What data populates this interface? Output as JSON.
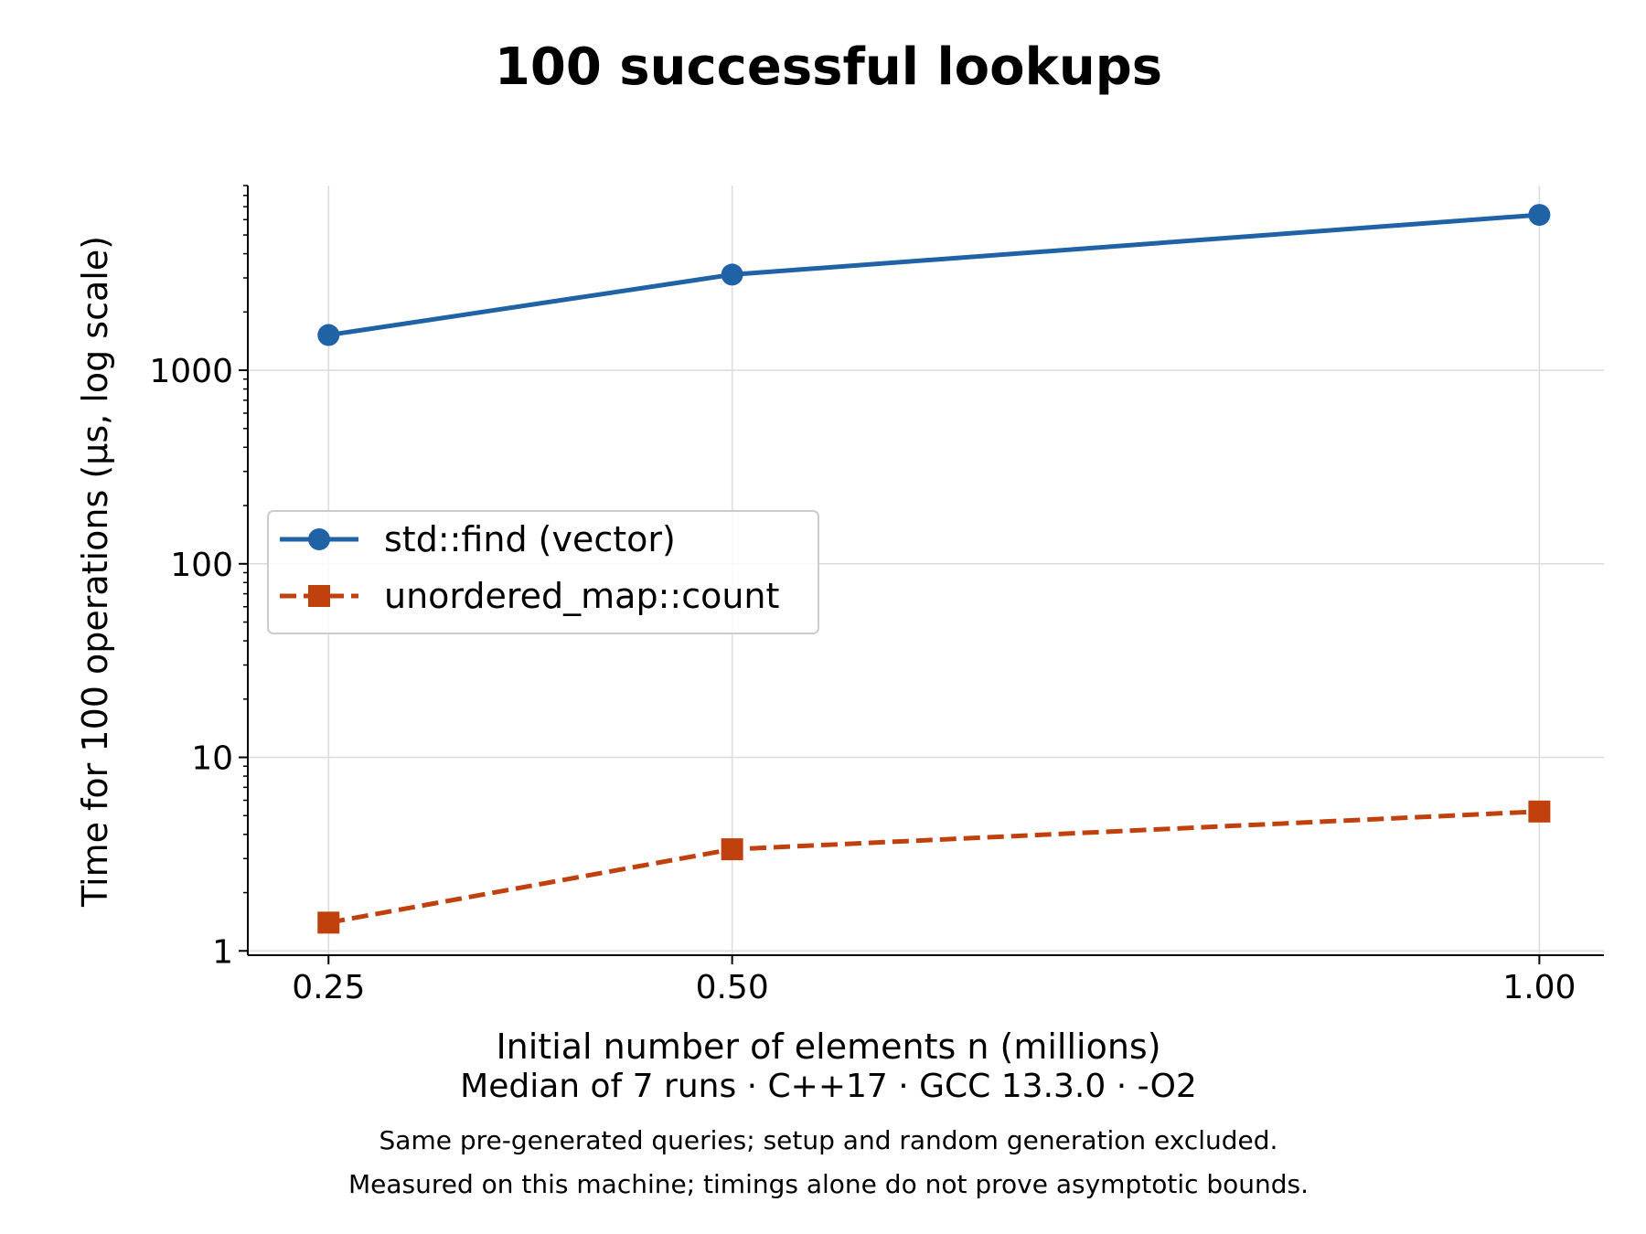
{
  "chart_data": {
    "type": "line",
    "title": "100 successful lookups",
    "xlabel": "Initial number of elements n (millions)",
    "ylabel": "Time for 100 operations (µs, log scale)",
    "subtitle": "Median of 7 runs · C++17 · GCC 13.3.0 · -O2",
    "footnotes": [
      "Same pre-generated queries; setup and random generation excluded.",
      "Measured on this machine; timings alone do not prove asymptotic bounds."
    ],
    "x": [
      0.25,
      0.5,
      1.0
    ],
    "x_tick_labels": [
      "0.25",
      "0.50",
      "1.00"
    ],
    "xlim": [
      0.2,
      1.04
    ],
    "y_scale": "log",
    "ylim": [
      0.95,
      9000
    ],
    "y_ticks": [
      1,
      10,
      100,
      1000
    ],
    "y_tick_labels": [
      "1",
      "10",
      "100",
      "1000"
    ],
    "grid": true,
    "legend_position": "center-left",
    "series": [
      {
        "name": "std::find (vector)",
        "values": [
          1520,
          3120,
          6350
        ],
        "color": "#1f63a6",
        "marker": "circle",
        "line_style": "solid"
      },
      {
        "name": "unordered_map::count",
        "values": [
          1.4,
          3.35,
          5.25
        ],
        "color": "#c0400e",
        "marker": "square",
        "line_style": "dashed"
      }
    ]
  }
}
